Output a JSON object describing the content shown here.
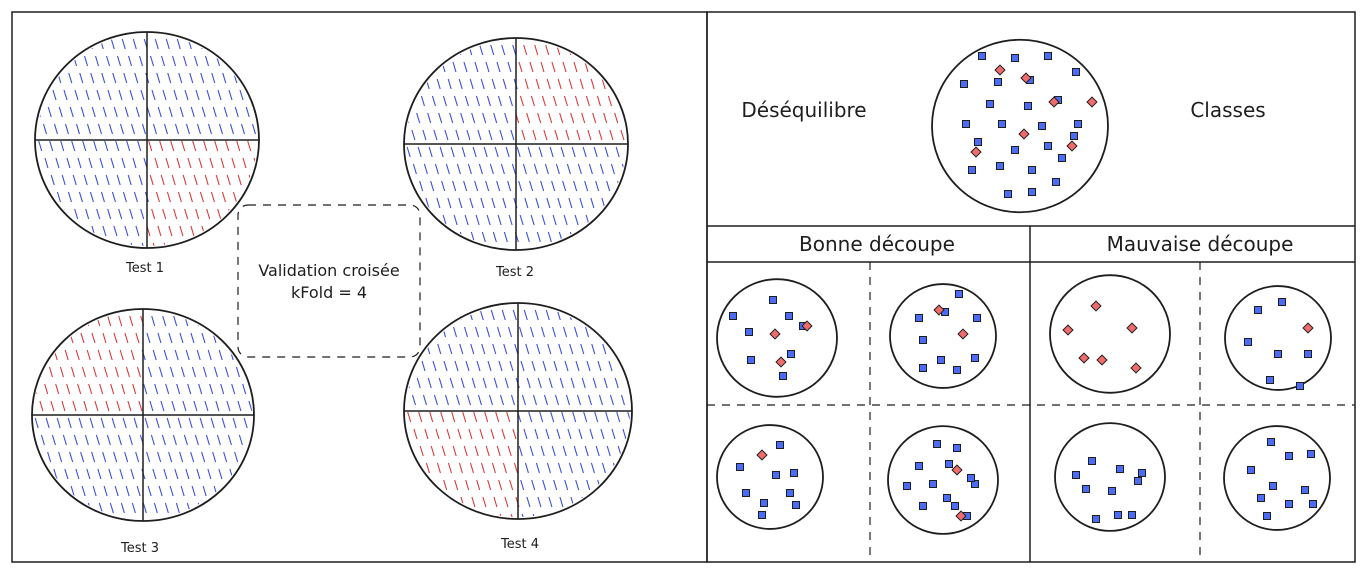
{
  "left_panel": {
    "tests": [
      {
        "label": "Test 1",
        "red_quadrant": "bottom-right"
      },
      {
        "label": "Test 2",
        "red_quadrant": "top-right"
      },
      {
        "label": "Test 3",
        "red_quadrant": "top-left"
      },
      {
        "label": "Test 4",
        "red_quadrant": "bottom-left"
      }
    ],
    "center_box": {
      "line1": "Validation croisée",
      "line2": "kFold = 4"
    }
  },
  "right_panel": {
    "top": {
      "left_label": "Déséquilibre",
      "right_label": "Classes"
    },
    "good_split": {
      "title": "Bonne découpe"
    },
    "bad_split": {
      "title": "Mauvaise découpe"
    }
  },
  "colors": {
    "ink": "#1e1e1e",
    "blue": "#3b4fd8",
    "red": "#d93a3a",
    "blue_fill": "#4a6cf7",
    "red_fill": "#f06b6b"
  }
}
